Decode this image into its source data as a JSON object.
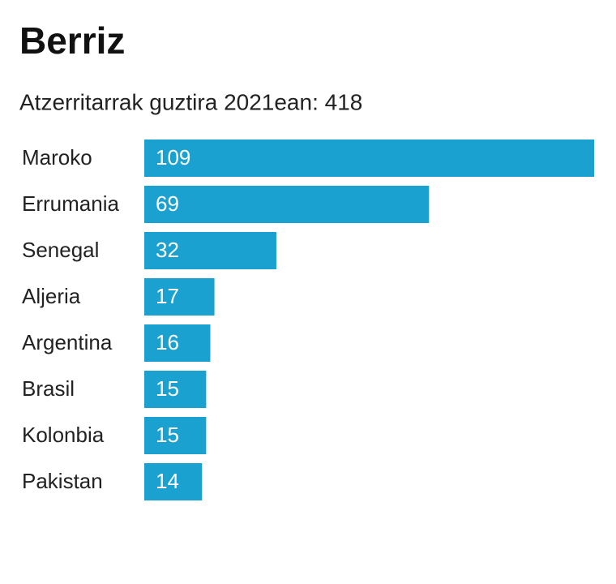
{
  "chart_data": {
    "type": "bar",
    "orientation": "horizontal",
    "title": "Berriz",
    "subtitle": "Atzerritarrak guztira 2021ean: 418",
    "categories": [
      "Maroko",
      "Errumania",
      "Senegal",
      "Aljeria",
      "Argentina",
      "Brasil",
      "Kolonbia",
      "Pakistan"
    ],
    "values": [
      109,
      69,
      32,
      17,
      16,
      15,
      15,
      14
    ],
    "color": "#1ba1cf",
    "value_label_color": "#ffffff"
  }
}
